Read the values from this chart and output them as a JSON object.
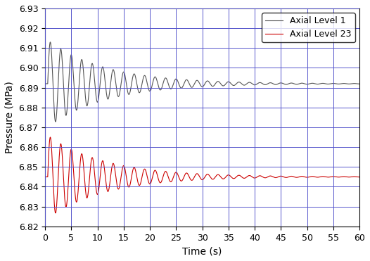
{
  "title": "",
  "xlabel": "Time (s)",
  "ylabel": "Pressure (MPa)",
  "xlim": [
    0,
    60
  ],
  "ylim": [
    6.82,
    6.93
  ],
  "yticks": [
    6.82,
    6.83,
    6.84,
    6.85,
    6.86,
    6.87,
    6.88,
    6.89,
    6.9,
    6.91,
    6.92,
    6.93
  ],
  "xticks": [
    0,
    5,
    10,
    15,
    20,
    25,
    30,
    35,
    40,
    45,
    50,
    55,
    60
  ],
  "grid_color": "#5555cc",
  "grid_linewidth": 0.7,
  "line1_color": "#555555",
  "line2_color": "#cc0000",
  "line1_label": "Axial Level 1",
  "line2_label": "Axial Level 23",
  "line1_steady": 6.892,
  "line2_steady": 6.845,
  "line1_step": 6.892,
  "line2_step": 6.845,
  "line1_peak_amp": 0.021,
  "line2_peak_amp": 0.02,
  "background_color": "#ffffff",
  "legend_fontsize": 9,
  "axis_fontsize": 10,
  "tick_fontsize": 9
}
